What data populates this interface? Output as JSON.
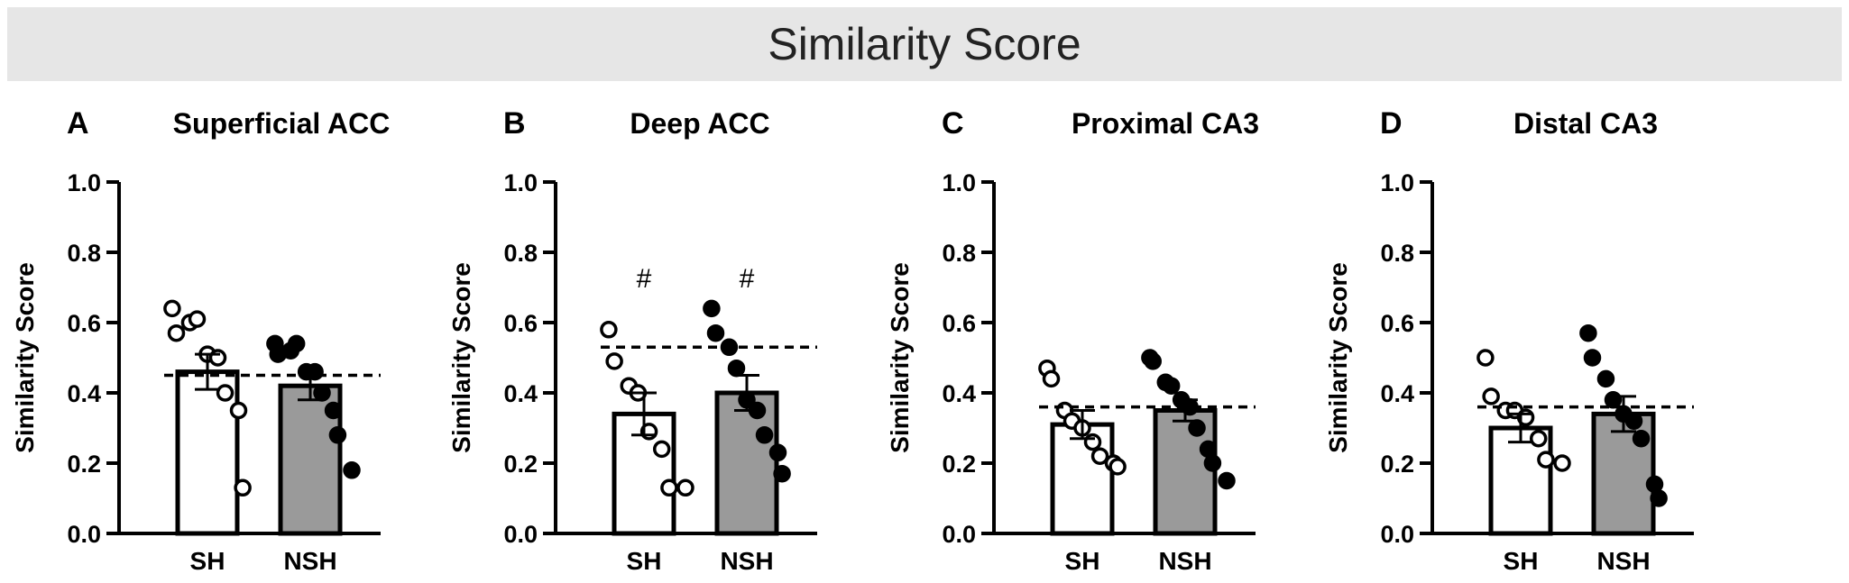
{
  "banner": {
    "title": "Similarity Score"
  },
  "style": {
    "banner_bg": "#e6e6e6",
    "sh_fill": "#ffffff",
    "nsh_fill": "#9a9a9a",
    "ink": "#000000"
  },
  "chart_data": [
    {
      "type": "bar",
      "panel_letter": "A",
      "title": "Superficial ACC",
      "ylabel": "Similarity Score",
      "xlabel": "",
      "ylim": [
        0,
        1.0
      ],
      "yticks": [
        "0.0",
        "0.2",
        "0.4",
        "0.6",
        "0.8",
        "1.0"
      ],
      "categories": [
        "SH",
        "NSH"
      ],
      "means": [
        0.46,
        0.42
      ],
      "sem": [
        0.05,
        0.04
      ],
      "chance_line": 0.45,
      "annotations": [
        "",
        ""
      ],
      "points": [
        [
          0.64,
          0.57,
          0.6,
          0.61,
          0.51,
          0.5,
          0.4,
          0.35,
          0.13
        ],
        [
          0.54,
          0.51,
          0.52,
          0.54,
          0.46,
          0.46,
          0.4,
          0.35,
          0.28,
          0.18
        ]
      ]
    },
    {
      "type": "bar",
      "panel_letter": "B",
      "title": "Deep ACC",
      "ylabel": "Similarity Score",
      "xlabel": "",
      "ylim": [
        0,
        1.0
      ],
      "yticks": [
        "0.0",
        "0.2",
        "0.4",
        "0.6",
        "0.8",
        "1.0"
      ],
      "categories": [
        "SH",
        "NSH"
      ],
      "means": [
        0.34,
        0.4
      ],
      "sem": [
        0.06,
        0.05
      ],
      "chance_line": 0.53,
      "annotations": [
        "#",
        "#"
      ],
      "points": [
        [
          0.58,
          0.49,
          0.42,
          0.4,
          0.29,
          0.24,
          0.13,
          0.13
        ],
        [
          0.64,
          0.57,
          0.53,
          0.47,
          0.38,
          0.35,
          0.28,
          0.23,
          0.17
        ]
      ]
    },
    {
      "type": "bar",
      "panel_letter": "C",
      "title": "Proximal CA3",
      "ylabel": "Similarity Score",
      "xlabel": "",
      "ylim": [
        0,
        1.0
      ],
      "yticks": [
        "0.0",
        "0.2",
        "0.4",
        "0.6",
        "0.8",
        "1.0"
      ],
      "categories": [
        "SH",
        "NSH"
      ],
      "means": [
        0.31,
        0.35
      ],
      "sem": [
        0.04,
        0.03
      ],
      "chance_line": 0.36,
      "annotations": [
        "",
        ""
      ],
      "points": [
        [
          0.47,
          0.44,
          0.35,
          0.32,
          0.3,
          0.26,
          0.22,
          0.2,
          0.19
        ],
        [
          0.5,
          0.49,
          0.43,
          0.42,
          0.38,
          0.36,
          0.3,
          0.24,
          0.2,
          0.15
        ]
      ]
    },
    {
      "type": "bar",
      "panel_letter": "D",
      "title": "Distal CA3",
      "ylabel": "Similarity Score",
      "xlabel": "",
      "ylim": [
        0,
        1.0
      ],
      "yticks": [
        "0.0",
        "0.2",
        "0.4",
        "0.6",
        "0.8",
        "1.0"
      ],
      "categories": [
        "SH",
        "NSH"
      ],
      "means": [
        0.3,
        0.34
      ],
      "sem": [
        0.04,
        0.05
      ],
      "chance_line": 0.36,
      "annotations": [
        "",
        ""
      ],
      "points": [
        [
          0.5,
          0.39,
          0.35,
          0.35,
          0.33,
          0.27,
          0.21,
          0.2
        ],
        [
          0.57,
          0.5,
          0.44,
          0.38,
          0.34,
          0.32,
          0.27,
          0.14,
          0.1
        ]
      ]
    }
  ]
}
